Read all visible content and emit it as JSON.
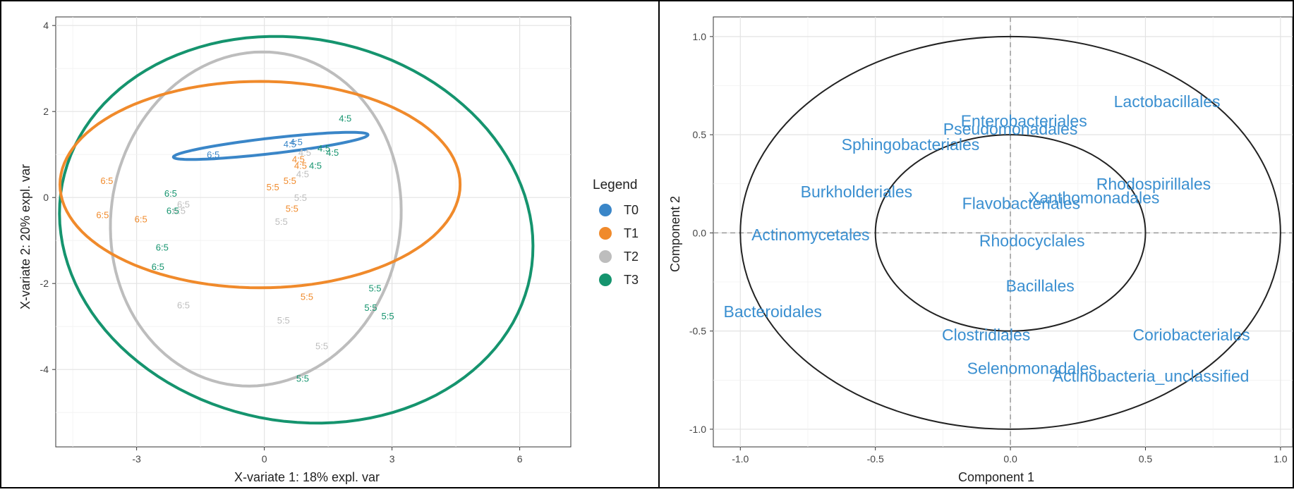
{
  "colors": {
    "T0": "#3a86c8",
    "T1": "#f08a2b",
    "T2": "#bdbdbd",
    "T3": "#15946e",
    "variable_text": "#3a8fd0",
    "grid": "#ebebeb",
    "frame": "#000000"
  },
  "chart_data": [
    {
      "type": "scatter",
      "title": "",
      "xlabel": "X-variate 1: 18% expl. var",
      "ylabel": "X-variate 2: 20% expl. var",
      "xlim": [
        -4.9,
        7.2
      ],
      "ylim": [
        -5.8,
        4.2
      ],
      "xticks": [
        -3,
        0,
        3,
        6
      ],
      "xtick_labels": [
        "-3",
        "0",
        "3",
        "6"
      ],
      "yticks": [
        -4,
        -2,
        0,
        2,
        4
      ],
      "ytick_labels": [
        "-4",
        "-2",
        "0",
        "2",
        "4"
      ],
      "grid": true,
      "legend": {
        "title": "Legend",
        "placement": "right",
        "entries": [
          "T0",
          "T1",
          "T2",
          "T3"
        ]
      },
      "series": [
        {
          "name": "T0",
          "color": "#3a86c8",
          "points": [
            {
              "x": -1.2,
              "y": 1.0,
              "label": "6:5"
            },
            {
              "x": 0.6,
              "y": 1.25,
              "label": "4:5"
            },
            {
              "x": 0.75,
              "y": 1.3,
              "label": "4:5"
            }
          ],
          "ellipse": {
            "cx": 0.15,
            "cy": 1.2,
            "rx": 2.3,
            "ry": 0.18,
            "angle_deg": 6.5
          }
        },
        {
          "name": "T1",
          "color": "#f08a2b",
          "points": [
            {
              "x": -3.7,
              "y": 0.4,
              "label": "6:5"
            },
            {
              "x": -3.8,
              "y": -0.4,
              "label": "6:5"
            },
            {
              "x": -2.9,
              "y": -0.5,
              "label": "6:5"
            },
            {
              "x": 0.2,
              "y": 0.25,
              "label": "5:5"
            },
            {
              "x": 0.6,
              "y": 0.4,
              "label": "5:5"
            },
            {
              "x": 0.65,
              "y": -0.25,
              "label": "5:5"
            },
            {
              "x": 0.8,
              "y": 0.9,
              "label": "4:5"
            },
            {
              "x": 0.85,
              "y": 0.75,
              "label": "4:5"
            },
            {
              "x": 1.0,
              "y": -2.3,
              "label": "5:5"
            }
          ],
          "ellipse": {
            "cx": -0.1,
            "cy": 0.3,
            "rx": 4.7,
            "ry": 2.4,
            "angle_deg": 0
          }
        },
        {
          "name": "T2",
          "color": "#bdbdbd",
          "points": [
            {
              "x": -1.9,
              "y": -0.15,
              "label": "6:5"
            },
            {
              "x": -2.0,
              "y": -0.3,
              "label": "6:5"
            },
            {
              "x": -1.9,
              "y": -2.5,
              "label": "6:5"
            },
            {
              "x": 0.4,
              "y": -0.55,
              "label": "5:5"
            },
            {
              "x": 0.85,
              "y": 0.0,
              "label": "5:5"
            },
            {
              "x": 0.9,
              "y": 0.55,
              "label": "4:5"
            },
            {
              "x": 0.95,
              "y": 1.05,
              "label": "4:5"
            },
            {
              "x": 0.45,
              "y": -2.85,
              "label": "5:5"
            },
            {
              "x": 1.35,
              "y": -3.45,
              "label": "5:5"
            }
          ],
          "ellipse": {
            "cx": -0.2,
            "cy": -0.5,
            "rx": 3.4,
            "ry": 3.9,
            "angle_deg": -10
          }
        },
        {
          "name": "T3",
          "color": "#15946e",
          "points": [
            {
              "x": -2.2,
              "y": 0.1,
              "label": "6:5"
            },
            {
              "x": -2.15,
              "y": -0.3,
              "label": "6:5"
            },
            {
              "x": -2.4,
              "y": -1.15,
              "label": "6:5"
            },
            {
              "x": -2.5,
              "y": -1.6,
              "label": "6:5"
            },
            {
              "x": 1.2,
              "y": 0.75,
              "label": "4:5"
            },
            {
              "x": 1.4,
              "y": 1.15,
              "label": "4:5"
            },
            {
              "x": 1.6,
              "y": 1.05,
              "label": "4:5"
            },
            {
              "x": 1.9,
              "y": 1.85,
              "label": "4:5"
            },
            {
              "x": 2.6,
              "y": -2.1,
              "label": "5:5"
            },
            {
              "x": 2.5,
              "y": -2.55,
              "label": "5:5"
            },
            {
              "x": 2.9,
              "y": -2.75,
              "label": "5:5"
            },
            {
              "x": 0.9,
              "y": -4.2,
              "label": "5:5"
            }
          ],
          "ellipse": {
            "cx": 0.75,
            "cy": -0.75,
            "rx": 5.6,
            "ry": 4.45,
            "angle_deg": -11
          }
        }
      ]
    },
    {
      "type": "scatter",
      "title": "",
      "xlabel": "Component  1",
      "ylabel": "Component  2",
      "xlim": [
        -1.1,
        1.05
      ],
      "ylim": [
        -1.09,
        1.1
      ],
      "xticks": [
        -1.0,
        -0.5,
        0.0,
        0.5,
        1.0
      ],
      "xtick_labels": [
        "-1.0",
        "-0.5",
        "0.0",
        "0.5",
        "1.0"
      ],
      "yticks": [
        -1.0,
        -0.5,
        0.0,
        0.5,
        1.0
      ],
      "ytick_labels": [
        "-1.0",
        "-0.5",
        "0.0",
        "0.5",
        "1.0"
      ],
      "grid": true,
      "circles": [
        {
          "r": 1.0
        },
        {
          "r": 0.5
        }
      ],
      "variables": [
        {
          "name": "Lactobacillales",
          "x": 0.58,
          "y": 0.67
        },
        {
          "name": "Enterobacteriales",
          "x": 0.05,
          "y": 0.57
        },
        {
          "name": "Pseudomonadales",
          "x": -0.0,
          "y": 0.53
        },
        {
          "name": "Sphingobacteriales",
          "x": -0.37,
          "y": 0.45
        },
        {
          "name": "Rhodospirillales",
          "x": 0.53,
          "y": 0.25
        },
        {
          "name": "Burkholderiales",
          "x": -0.57,
          "y": 0.21
        },
        {
          "name": "Xanthomonadales",
          "x": 0.31,
          "y": 0.18
        },
        {
          "name": "Flavobacteriales",
          "x": 0.04,
          "y": 0.15
        },
        {
          "name": "Actinomycetales",
          "x": -0.74,
          "y": -0.01
        },
        {
          "name": "Rhodocyclales",
          "x": 0.08,
          "y": -0.04
        },
        {
          "name": "Bacillales",
          "x": 0.11,
          "y": -0.27
        },
        {
          "name": "Bacteroidales",
          "x": -0.88,
          "y": -0.4
        },
        {
          "name": "Clostridiales",
          "x": -0.09,
          "y": -0.52
        },
        {
          "name": "Coriobacteriales",
          "x": 0.67,
          "y": -0.52
        },
        {
          "name": "Selenomonadales",
          "x": 0.08,
          "y": -0.69
        },
        {
          "name": "Actinobacteria_unclassified",
          "x": 0.52,
          "y": -0.73
        }
      ]
    }
  ]
}
